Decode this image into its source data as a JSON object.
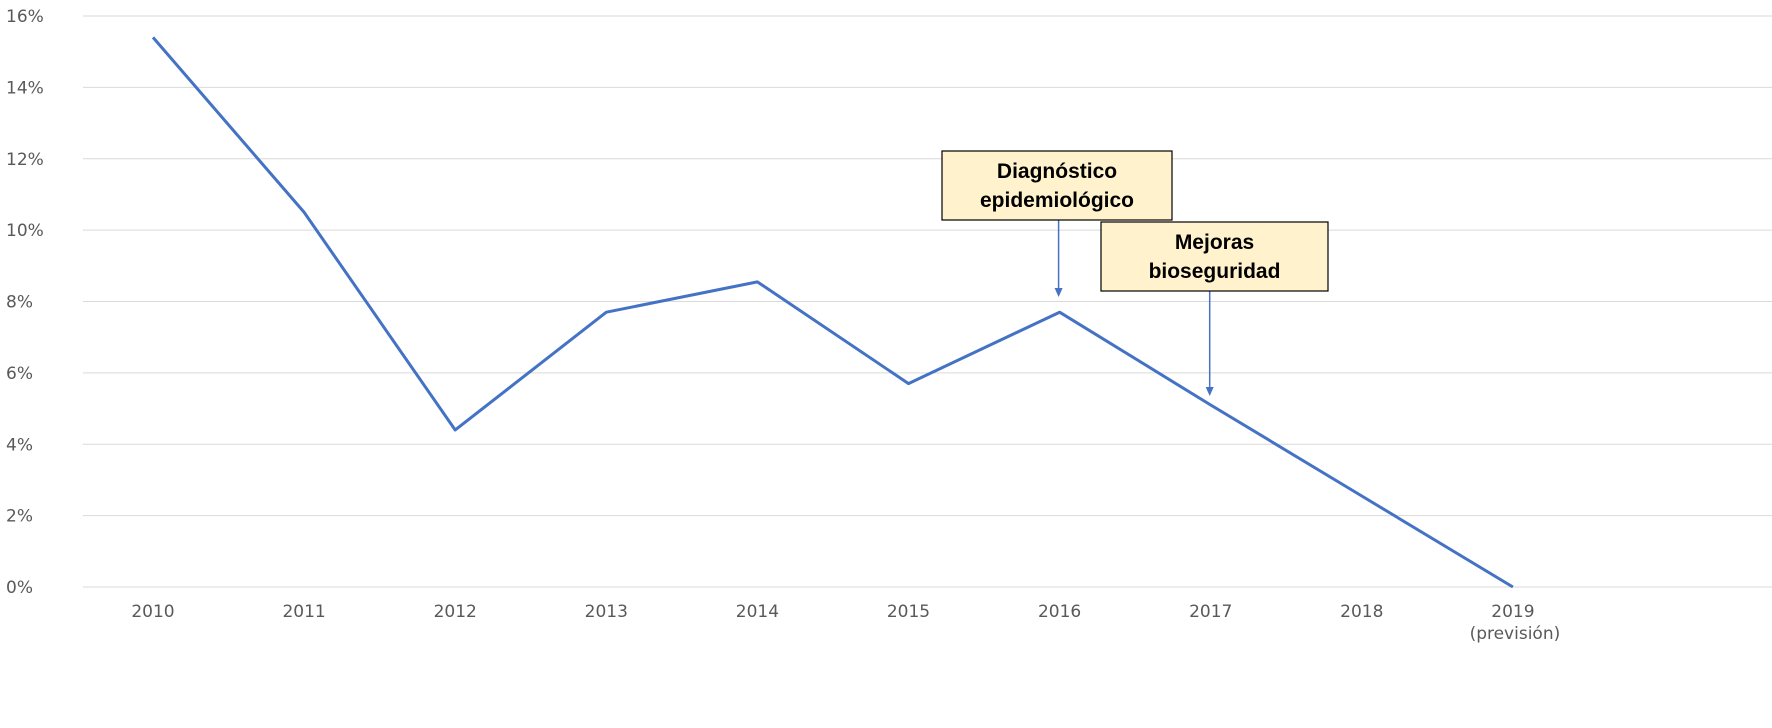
{
  "chart_data": {
    "type": "line",
    "title": "",
    "xlabel": "",
    "ylabel": "",
    "categories": [
      "2010",
      "2011",
      "2012",
      "2013",
      "2014",
      "2015",
      "2016",
      "2017",
      "2018",
      "2019"
    ],
    "category_sublabels": [
      "",
      "",
      "",
      "",
      "",
      "",
      "",
      "",
      "",
      "(previsión)"
    ],
    "y_tick_labels": [
      "0%",
      "2%",
      "4%",
      "6%",
      "8%",
      "10%",
      "12%",
      "14%",
      "16%"
    ],
    "ylim": [
      0,
      16
    ],
    "y_unit": "%",
    "grid": true,
    "legend": "none",
    "series": [
      {
        "color": "#4472c4",
        "values": [
          15.4,
          10.5,
          4.4,
          7.7,
          8.55,
          5.7,
          7.7,
          5.1,
          2.55,
          0.0
        ]
      }
    ],
    "annotations": [
      {
        "lines": [
          "Diagnóstico",
          "epidemiológico"
        ],
        "x": "2016",
        "y": 7.7,
        "box_fill": "#fff2cc"
      },
      {
        "lines": [
          "Mejoras",
          "bioseguridad"
        ],
        "x": "2017",
        "y": 5.1,
        "box_fill": "#fff2cc"
      }
    ]
  }
}
